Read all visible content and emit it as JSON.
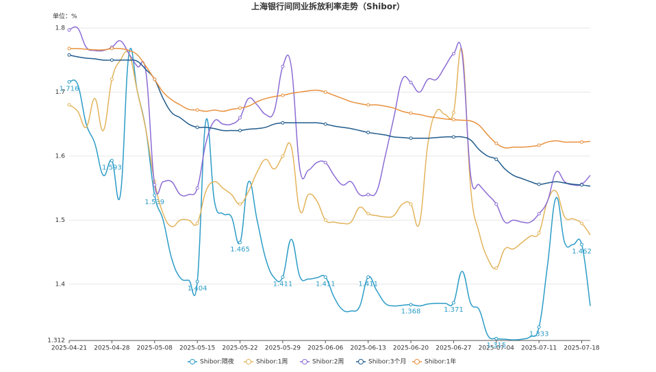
{
  "chart_data": {
    "type": "line",
    "title": "上海银行间同业拆放利率走势（Shibor）",
    "y_label": "单位：%",
    "categories": [
      "2025-04-21",
      null,
      null,
      null,
      null,
      "2025-04-28",
      null,
      null,
      null,
      null,
      "2025-05-08",
      null,
      null,
      null,
      null,
      "2025-05-15",
      null,
      null,
      null,
      null,
      "2025-05-22",
      null,
      null,
      null,
      null,
      "2025-05-29",
      null,
      null,
      null,
      null,
      "2025-06-06",
      null,
      null,
      null,
      null,
      "2025-06-13",
      null,
      null,
      null,
      null,
      "2025-06-20",
      null,
      null,
      null,
      null,
      "2025-06-27",
      null,
      null,
      null,
      null,
      "2025-07-04",
      null,
      null,
      null,
      null,
      "2025-07-11",
      null,
      null,
      null,
      null,
      "2025-07-18",
      null
    ],
    "ylim": [
      1.312,
      1.8
    ],
    "yticks": [
      1.312,
      1.4,
      1.5,
      1.6,
      1.7,
      1.8
    ],
    "grid": true,
    "legend": "bottom",
    "series": [
      {
        "name": "Shibor:隔夜",
        "color": "#2a9bc6",
        "values": [
          1.716,
          1.712,
          1.65,
          1.62,
          1.57,
          1.593,
          1.54,
          1.76,
          1.7,
          1.64,
          1.539,
          1.5,
          1.44,
          1.41,
          1.406,
          1.404,
          1.655,
          1.53,
          1.51,
          1.505,
          1.465,
          1.56,
          1.5,
          1.44,
          1.41,
          1.411,
          1.47,
          1.412,
          1.408,
          1.41,
          1.411,
          1.38,
          1.36,
          1.358,
          1.365,
          1.411,
          1.39,
          1.37,
          1.366,
          1.367,
          1.368,
          1.366,
          1.369,
          1.37,
          1.37,
          1.371,
          1.42,
          1.37,
          1.36,
          1.32,
          1.315,
          1.314,
          1.313,
          1.314,
          1.318,
          1.333,
          1.43,
          1.535,
          1.465,
          1.462,
          1.462,
          1.366
        ],
        "value_labels": [
          "1.716",
          null,
          null,
          null,
          null,
          "1.593",
          null,
          null,
          null,
          null,
          "1.539",
          null,
          null,
          null,
          null,
          "1.404",
          null,
          null,
          null,
          null,
          "1.465",
          null,
          null,
          null,
          null,
          "1.411",
          null,
          null,
          null,
          null,
          "1.411",
          null,
          null,
          null,
          null,
          "1.411",
          null,
          null,
          null,
          null,
          "1.368",
          null,
          null,
          null,
          null,
          "1.371",
          null,
          null,
          null,
          null,
          "1.315",
          null,
          null,
          null,
          null,
          "1.333",
          null,
          null,
          null,
          null,
          "1.462",
          null
        ]
      },
      {
        "name": "Shibor:1周",
        "color": "#e2b35a",
        "values": [
          1.68,
          1.67,
          1.645,
          1.69,
          1.64,
          1.72,
          1.75,
          1.76,
          1.7,
          1.64,
          1.56,
          1.51,
          1.49,
          1.5,
          1.5,
          1.495,
          1.545,
          1.56,
          1.55,
          1.54,
          1.525,
          1.545,
          1.575,
          1.595,
          1.58,
          1.6,
          1.615,
          1.515,
          1.54,
          1.53,
          1.5,
          1.497,
          1.495,
          1.497,
          1.52,
          1.51,
          1.507,
          1.505,
          1.507,
          1.525,
          1.525,
          1.495,
          1.62,
          1.67,
          1.665,
          1.668,
          1.765,
          1.55,
          1.48,
          1.44,
          1.425,
          1.455,
          1.455,
          1.465,
          1.475,
          1.48,
          1.53,
          1.545,
          1.505,
          1.502,
          1.495,
          1.477
        ]
      },
      {
        "name": "Shibor:2周",
        "color": "#8b6bd4",
        "values": [
          1.797,
          1.8,
          1.77,
          1.765,
          1.765,
          1.77,
          1.78,
          1.76,
          1.74,
          1.73,
          1.555,
          1.56,
          1.56,
          1.54,
          1.54,
          1.55,
          1.62,
          1.655,
          1.65,
          1.65,
          1.66,
          1.69,
          1.68,
          1.665,
          1.67,
          1.74,
          1.74,
          1.58,
          1.578,
          1.59,
          1.59,
          1.57,
          1.555,
          1.56,
          1.54,
          1.54,
          1.545,
          1.6,
          1.66,
          1.72,
          1.715,
          1.7,
          1.72,
          1.72,
          1.74,
          1.76,
          1.76,
          1.57,
          1.555,
          1.54,
          1.525,
          1.497,
          1.5,
          1.497,
          1.497,
          1.51,
          1.53,
          1.575,
          1.56,
          1.555,
          1.556,
          1.57
        ]
      },
      {
        "name": "Shibor:3个月",
        "color": "#1f5a8c",
        "values": [
          1.758,
          1.755,
          1.753,
          1.752,
          1.75,
          1.75,
          1.75,
          1.75,
          1.748,
          1.735,
          1.72,
          1.69,
          1.668,
          1.66,
          1.65,
          1.645,
          1.645,
          1.643,
          1.64,
          1.64,
          1.64,
          1.642,
          1.643,
          1.645,
          1.65,
          1.652,
          1.652,
          1.652,
          1.652,
          1.652,
          1.65,
          1.647,
          1.645,
          1.643,
          1.64,
          1.637,
          1.635,
          1.633,
          1.63,
          1.629,
          1.628,
          1.628,
          1.628,
          1.629,
          1.63,
          1.63,
          1.63,
          1.625,
          1.61,
          1.6,
          1.595,
          1.58,
          1.57,
          1.565,
          1.56,
          1.556,
          1.558,
          1.56,
          1.558,
          1.556,
          1.555,
          1.553
        ]
      },
      {
        "name": "Shibor:1年",
        "color": "#e8903c",
        "values": [
          1.768,
          1.768,
          1.767,
          1.766,
          1.766,
          1.768,
          1.768,
          1.765,
          1.758,
          1.74,
          1.72,
          1.7,
          1.688,
          1.68,
          1.673,
          1.672,
          1.67,
          1.672,
          1.67,
          1.673,
          1.675,
          1.678,
          1.685,
          1.69,
          1.693,
          1.695,
          1.698,
          1.7,
          1.702,
          1.703,
          1.7,
          1.695,
          1.69,
          1.685,
          1.682,
          1.68,
          1.68,
          1.678,
          1.675,
          1.67,
          1.667,
          1.665,
          1.662,
          1.66,
          1.658,
          1.657,
          1.656,
          1.655,
          1.648,
          1.633,
          1.62,
          1.613,
          1.614,
          1.614,
          1.615,
          1.617,
          1.622,
          1.624,
          1.622,
          1.622,
          1.622,
          1.623
        ]
      }
    ]
  }
}
